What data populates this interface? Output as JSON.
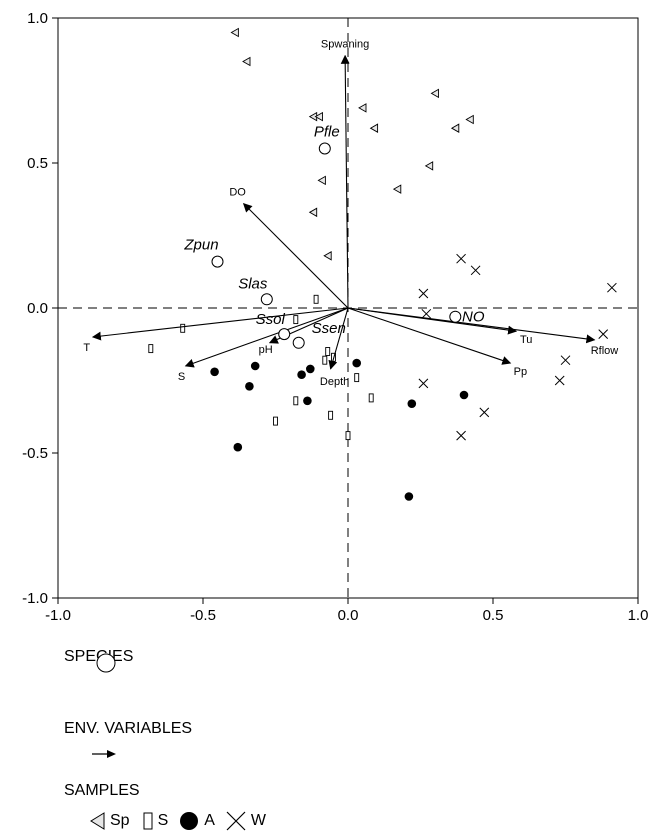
{
  "chart_data": {
    "type": "scatter",
    "xlim": [
      -1.0,
      1.0
    ],
    "ylim": [
      -1.0,
      1.0
    ],
    "x_ticks": [
      {
        "v": -1.0,
        "label": "-1.0"
      },
      {
        "v": -0.5,
        "label": "-0.5"
      },
      {
        "v": 0.0,
        "label": "0.0"
      },
      {
        "v": 0.5,
        "label": "0.5"
      },
      {
        "v": 1.0,
        "label": "1.0"
      }
    ],
    "y_ticks": [
      {
        "v": -1.0,
        "label": "-1.0"
      },
      {
        "v": -0.5,
        "label": "-0.5"
      },
      {
        "v": 0.0,
        "label": "0.0"
      },
      {
        "v": 0.5,
        "label": "0.5"
      },
      {
        "v": 1.0,
        "label": "1.0"
      }
    ],
    "species": [
      {
        "label": "Pfle",
        "x": -0.08,
        "y": 0.55
      },
      {
        "label": "Zpun",
        "x": -0.45,
        "y": 0.16
      },
      {
        "label": "Slas",
        "x": -0.28,
        "y": 0.03
      },
      {
        "label": "Ssol",
        "x": -0.22,
        "y": -0.09
      },
      {
        "label": "Ssen",
        "x": -0.17,
        "y": -0.12
      },
      {
        "label": "NO",
        "x": 0.37,
        "y": -0.03
      }
    ],
    "env_variables": [
      {
        "label": "Spwaning",
        "x": -0.01,
        "y": 0.87
      },
      {
        "label": "DO",
        "x": -0.36,
        "y": 0.36
      },
      {
        "label": "T",
        "x": -0.88,
        "y": -0.1
      },
      {
        "label": "S",
        "x": -0.56,
        "y": -0.2
      },
      {
        "label": "pH",
        "x": -0.27,
        "y": -0.12
      },
      {
        "label": "Depth",
        "x": -0.06,
        "y": -0.21
      },
      {
        "label": "Tu",
        "x": 0.58,
        "y": -0.08
      },
      {
        "label": "Rflow",
        "x": 0.85,
        "y": -0.11
      },
      {
        "label": "Pp",
        "x": 0.56,
        "y": -0.19
      }
    ],
    "samples": [
      {
        "name": "Sp",
        "marker": "triangle",
        "points": [
          [
            -0.39,
            0.95
          ],
          [
            -0.35,
            0.85
          ],
          [
            -0.12,
            0.66
          ],
          [
            -0.1,
            0.66
          ],
          [
            0.05,
            0.69
          ],
          [
            0.3,
            0.74
          ],
          [
            0.09,
            0.62
          ],
          [
            0.37,
            0.62
          ],
          [
            0.42,
            0.65
          ],
          [
            0.28,
            0.49
          ],
          [
            0.17,
            0.41
          ],
          [
            -0.09,
            0.44
          ],
          [
            -0.12,
            0.33
          ],
          [
            -0.07,
            0.18
          ]
        ]
      },
      {
        "name": "S",
        "marker": "rect",
        "points": [
          [
            -0.11,
            0.03
          ],
          [
            -0.57,
            -0.07
          ],
          [
            -0.68,
            -0.14
          ],
          [
            -0.18,
            -0.04
          ],
          [
            -0.07,
            -0.15
          ],
          [
            -0.08,
            -0.18
          ],
          [
            -0.05,
            -0.17
          ],
          [
            0.03,
            -0.24
          ],
          [
            0.08,
            -0.31
          ],
          [
            -0.18,
            -0.32
          ],
          [
            -0.06,
            -0.37
          ],
          [
            -0.25,
            -0.39
          ],
          [
            0.0,
            -0.44
          ]
        ]
      },
      {
        "name": "A",
        "marker": "circle",
        "points": [
          [
            -0.46,
            -0.22
          ],
          [
            -0.32,
            -0.2
          ],
          [
            -0.34,
            -0.27
          ],
          [
            -0.16,
            -0.23
          ],
          [
            -0.13,
            -0.21
          ],
          [
            0.03,
            -0.19
          ],
          [
            -0.14,
            -0.32
          ],
          [
            0.22,
            -0.33
          ],
          [
            0.4,
            -0.3
          ],
          [
            -0.38,
            -0.48
          ],
          [
            0.21,
            -0.65
          ]
        ]
      },
      {
        "name": "W",
        "marker": "x",
        "points": [
          [
            0.39,
            0.17
          ],
          [
            0.44,
            0.13
          ],
          [
            0.26,
            0.05
          ],
          [
            0.27,
            -0.02
          ],
          [
            0.91,
            0.07
          ],
          [
            0.88,
            -0.09
          ],
          [
            0.75,
            -0.18
          ],
          [
            0.73,
            -0.25
          ],
          [
            0.26,
            -0.26
          ],
          [
            0.47,
            -0.36
          ],
          [
            0.39,
            -0.44
          ]
        ]
      }
    ]
  },
  "legend": {
    "species_title": "SPECIES",
    "env_title": "ENV. VARIABLES",
    "samples_title": "SAMPLES",
    "sample_labels": [
      "Sp",
      "S",
      "A",
      "W"
    ]
  }
}
